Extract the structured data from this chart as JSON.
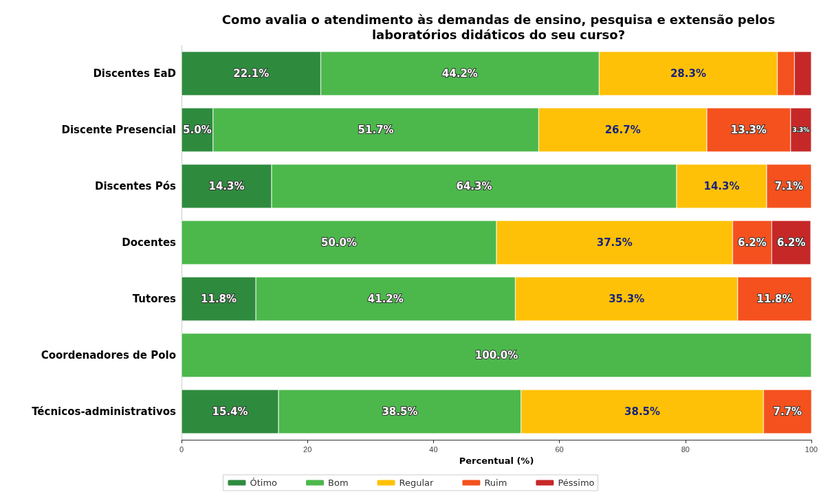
{
  "chart_data": {
    "type": "bar",
    "orientation": "horizontal",
    "stacked": true,
    "title": "Como avalia o atendimento às demandas de ensino, pesquisa e extensão pelos\nlaboratórios didáticos do seu curso?",
    "xlabel": "Percentual (%)",
    "categories": [
      "Discentes EaD",
      "Discente Presencial",
      "Discentes Pós",
      "Docentes",
      "Tutores",
      "Coordenadores de Polo",
      "Técnicos-administrativos"
    ],
    "series": [
      {
        "name": "Ótimo",
        "color": "#2e8b3e",
        "values": [
          22.1,
          5.0,
          14.3,
          0,
          11.8,
          0,
          15.4
        ],
        "value_labels": [
          "22.1%",
          "5.0%",
          "14.3%",
          null,
          "11.8%",
          null,
          "15.4%"
        ]
      },
      {
        "name": "Bom",
        "color": "#4cb84c",
        "values": [
          44.2,
          51.7,
          64.3,
          50.0,
          41.2,
          100.0,
          38.5
        ],
        "value_labels": [
          "44.2%",
          "51.7%",
          "64.3%",
          "50.0%",
          "41.2%",
          "100.0%",
          "38.5%"
        ]
      },
      {
        "name": "Regular",
        "color": "#ffc107",
        "values": [
          28.3,
          26.7,
          14.3,
          37.5,
          35.3,
          0,
          38.5
        ],
        "value_labels": [
          "28.3%",
          "26.7%",
          "14.3%",
          "37.5%",
          "35.3%",
          null,
          "38.5%"
        ]
      },
      {
        "name": "Ruim",
        "color": "#f4511e",
        "values": [
          2.7,
          13.3,
          7.1,
          6.2,
          11.8,
          0,
          7.7
        ],
        "value_labels": [
          null,
          "13.3%",
          "7.1%",
          "6.2%",
          "11.8%",
          null,
          "7.7%"
        ]
      },
      {
        "name": "Péssimo",
        "color": "#c62828",
        "values": [
          2.7,
          3.3,
          0,
          6.2,
          0,
          0,
          0
        ],
        "value_labels": [
          null,
          "3.3%",
          null,
          "6.2%",
          null,
          null,
          null
        ]
      }
    ],
    "xlim": [
      0,
      100
    ],
    "xticks": [
      0,
      20,
      40,
      60,
      80,
      100
    ],
    "grid": false,
    "legend": "bottom"
  }
}
